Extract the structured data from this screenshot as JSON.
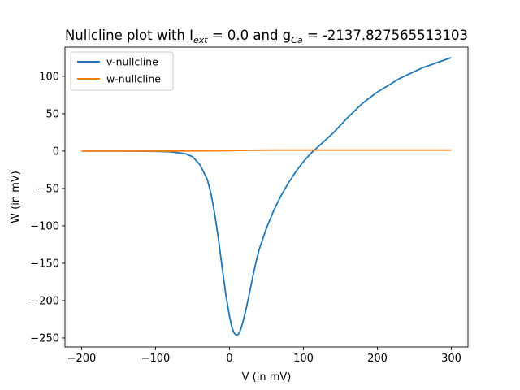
{
  "chart_data": {
    "type": "line",
    "title": "Nullcline plot with I",
    "title_sub_1": "ext",
    "title_mid": " = 0.0 and g",
    "title_sub_2": "Ca",
    "title_end": " = -2137.827565513103",
    "xlabel": "V (in mV)",
    "ylabel": "W (in mV)",
    "xlim": [
      -222.5,
      322.5
    ],
    "ylim": [
      -262,
      139
    ],
    "x_ticks": [
      -200,
      -100,
      0,
      100,
      200,
      300
    ],
    "x_tick_labels": [
      "−200",
      "−100",
      "0",
      "100",
      "200",
      "300"
    ],
    "y_ticks": [
      -250,
      -200,
      -150,
      -100,
      -50,
      0,
      50,
      100
    ],
    "y_tick_labels": [
      "−250",
      "−200",
      "−150",
      "−100",
      "−50",
      "0",
      "50",
      "100"
    ],
    "grid": false,
    "legend_position": "top-left",
    "series": [
      {
        "name": "v-nullcline",
        "color": "#1f77b4",
        "x": [
          -200,
          -150,
          -100,
          -80,
          -60,
          -50,
          -40,
          -30,
          -25,
          -20,
          -15,
          -10,
          -5,
          0,
          3,
          6,
          9,
          12,
          15,
          18,
          22,
          26,
          30,
          35,
          40,
          50,
          60,
          70,
          80,
          90,
          100,
          110,
          120,
          140,
          160,
          180,
          200,
          230,
          260,
          300
        ],
        "y": [
          0.0,
          0.0,
          -0.3,
          -0.9,
          -3.5,
          -7.5,
          -18,
          -38,
          -57,
          -84,
          -117,
          -155,
          -192,
          -221,
          -235,
          -243,
          -246,
          -245,
          -239,
          -229,
          -213,
          -195,
          -175,
          -152,
          -132,
          -103,
          -79,
          -59,
          -42,
          -27,
          -14,
          -3,
          6,
          24,
          45,
          64,
          79,
          97,
          111,
          125
        ]
      },
      {
        "name": "w-nullcline",
        "color": "#ff7f0e",
        "x": [
          -200,
          -150,
          -100,
          -60,
          -30,
          0,
          20,
          40,
          60,
          100,
          150,
          200,
          250,
          300
        ],
        "y": [
          0.0,
          0.0,
          0.0,
          0.1,
          0.3,
          0.6,
          1.0,
          1.2,
          1.3,
          1.3,
          1.3,
          1.3,
          1.3,
          1.3
        ]
      }
    ]
  }
}
